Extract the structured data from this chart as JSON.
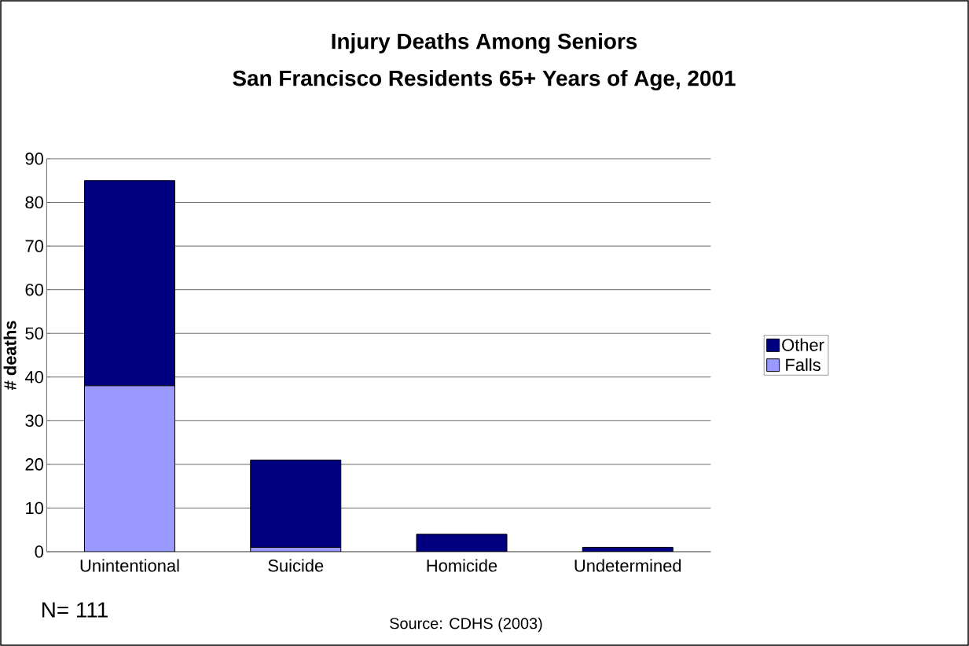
{
  "chart_data": {
    "type": "bar",
    "title": "Injury Deaths Among Seniors",
    "subtitle": "San Francisco Residents 65+ Years of Age, 2001",
    "ylabel": "# deaths",
    "categories": [
      "Unintentional",
      "Suicide",
      "Homicide",
      "Undetermined"
    ],
    "stacked": true,
    "series": [
      {
        "name": "Falls",
        "color": "#9999ff",
        "values": [
          38,
          1,
          0,
          0
        ]
      },
      {
        "name": "Other",
        "color": "#000080",
        "values": [
          47,
          20,
          4,
          1
        ]
      }
    ],
    "ylim": [
      0,
      90
    ],
    "yticks": [
      0,
      10,
      20,
      30,
      40,
      50,
      60,
      70,
      80,
      90
    ],
    "grid": "y",
    "legend": "right",
    "annotations": [
      "N= 111",
      "Source: CDHS (2003)"
    ]
  }
}
